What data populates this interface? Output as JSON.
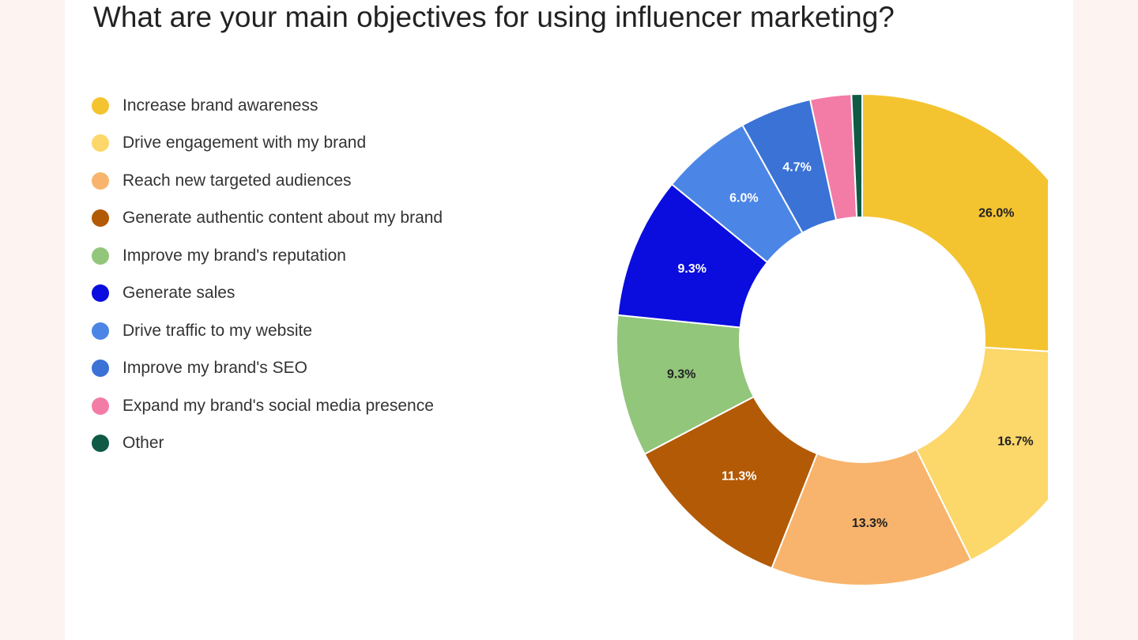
{
  "chart_data": {
    "type": "pie",
    "variant": "donut",
    "title": "What are your main objectives for using influencer marketing?",
    "legend_position": "left",
    "categories": [
      "Increase brand awareness",
      "Drive engagement with my brand",
      "Reach new targeted audiences",
      "Generate authentic content about my brand",
      "Improve my brand's reputation",
      "Generate sales",
      "Drive traffic to my website",
      "Improve my brand's SEO",
      "Expand my brand's social media presence",
      "Other"
    ],
    "values": [
      26.0,
      16.7,
      13.3,
      11.3,
      9.3,
      9.3,
      6.0,
      4.7,
      2.7,
      0.7
    ],
    "data_labels": [
      "26.0%",
      "16.7%",
      "13.3%",
      "11.3%",
      "9.3%",
      "9.3%",
      "6.0%",
      "4.7%",
      "",
      ""
    ],
    "colors": [
      "#f4c430",
      "#fcd76a",
      "#f8b46c",
      "#b35a06",
      "#92c67b",
      "#0a0ddd",
      "#4b86e6",
      "#3a72d6",
      "#f37ca6",
      "#0f5a45"
    ],
    "label_colors": [
      "#222222",
      "#222222",
      "#222222",
      "#ffffff",
      "#222222",
      "#ffffff",
      "#ffffff",
      "#ffffff",
      "#ffffff",
      "#ffffff"
    ]
  }
}
